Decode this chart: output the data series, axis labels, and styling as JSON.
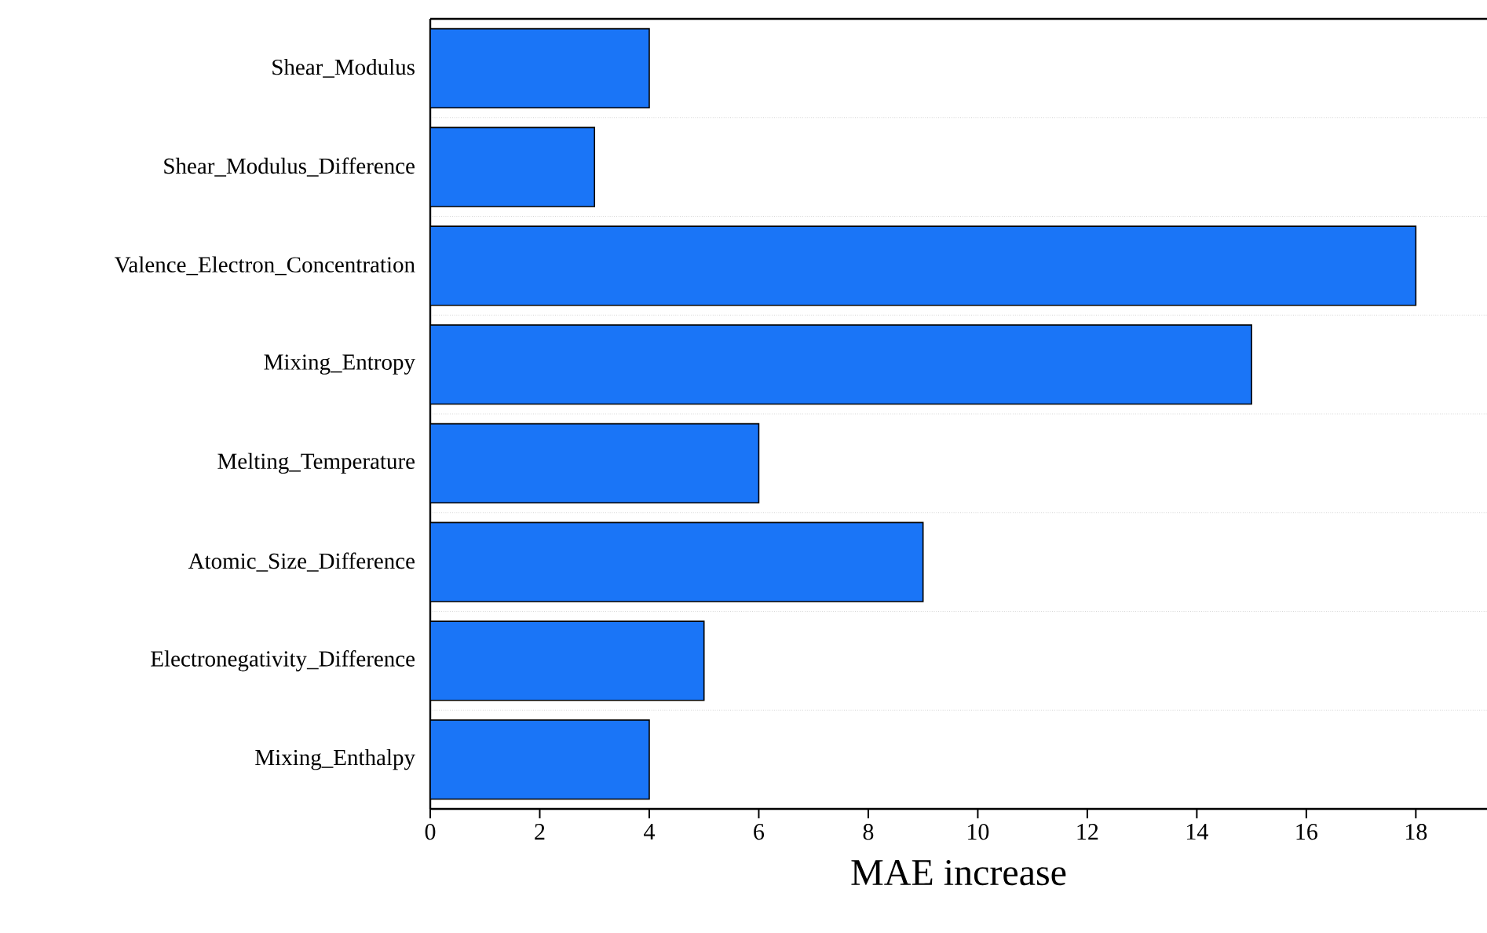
{
  "chart_data": {
    "type": "bar",
    "orientation": "horizontal",
    "xlabel": "MAE increase",
    "categories": [
      "Shear_Modulus",
      "Shear_Modulus_Difference",
      "Valence_Electron_Concentration",
      "Mixing_Entropy",
      "Melting_Temperature",
      "Atomic_Size_Difference",
      "Electronegativity_Difference",
      "Mixing_Enthalpy"
    ],
    "values": [
      4,
      3,
      18,
      15,
      6,
      9,
      5,
      4
    ],
    "color": "#1a75f7",
    "xlim": [
      0,
      19.3
    ],
    "xticks": [
      0,
      2,
      4,
      6,
      8,
      10,
      12,
      14,
      16,
      18
    ],
    "grid": "y"
  }
}
